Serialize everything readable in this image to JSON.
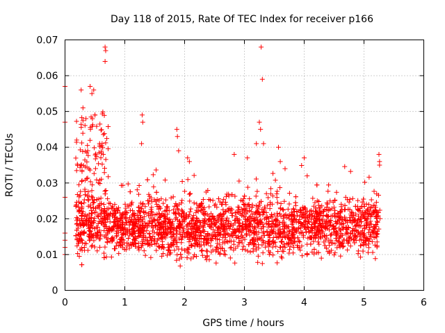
{
  "chart_data": {
    "type": "scatter",
    "title": "Day 118 of 2015, Rate Of TEC Index for receiver p166",
    "xlabel": "GPS time / hours",
    "ylabel": "ROTI / TECUs",
    "xlim": [
      0,
      6
    ],
    "ylim": [
      0,
      0.07
    ],
    "grid": true,
    "marker": "+",
    "color": "#ff0000",
    "x_ticks": [
      "0",
      "1",
      "2",
      "3",
      "4",
      "5",
      "6"
    ],
    "y_ticks": [
      "0",
      "0.01",
      "0.02",
      "0.03",
      "0.04",
      "0.05",
      "0.06",
      "0.07"
    ],
    "series": [
      {
        "name": "ROTI",
        "x_range": [
          0.0,
          5.27
        ],
        "typical_range": [
          0.006,
          0.025
        ],
        "sample_count": 2600,
        "notable_points": [
          {
            "x": 0.0,
            "y": 0.057
          },
          {
            "x": 0.0,
            "y": 0.047
          },
          {
            "x": 0.0,
            "y": 0.026
          },
          {
            "x": 0.0,
            "y": 0.016
          },
          {
            "x": 0.0,
            "y": 0.014
          },
          {
            "x": 0.0,
            "y": 0.012
          },
          {
            "x": 0.0,
            "y": 0.01
          },
          {
            "x": 0.27,
            "y": 0.056
          },
          {
            "x": 0.3,
            "y": 0.051
          },
          {
            "x": 0.35,
            "y": 0.048
          },
          {
            "x": 0.42,
            "y": 0.057
          },
          {
            "x": 0.45,
            "y": 0.055
          },
          {
            "x": 0.48,
            "y": 0.056
          },
          {
            "x": 0.5,
            "y": 0.049
          },
          {
            "x": 0.38,
            "y": 0.039
          },
          {
            "x": 0.4,
            "y": 0.034
          },
          {
            "x": 0.62,
            "y": 0.041
          },
          {
            "x": 0.64,
            "y": 0.038
          },
          {
            "x": 0.67,
            "y": 0.068
          },
          {
            "x": 0.68,
            "y": 0.067
          },
          {
            "x": 0.67,
            "y": 0.064
          },
          {
            "x": 1.29,
            "y": 0.049
          },
          {
            "x": 1.3,
            "y": 0.047
          },
          {
            "x": 1.28,
            "y": 0.041
          },
          {
            "x": 1.87,
            "y": 0.045
          },
          {
            "x": 1.88,
            "y": 0.043
          },
          {
            "x": 1.9,
            "y": 0.039
          },
          {
            "x": 2.05,
            "y": 0.037
          },
          {
            "x": 2.08,
            "y": 0.036
          },
          {
            "x": 2.83,
            "y": 0.038
          },
          {
            "x": 3.05,
            "y": 0.037
          },
          {
            "x": 3.2,
            "y": 0.041
          },
          {
            "x": 3.25,
            "y": 0.047
          },
          {
            "x": 3.27,
            "y": 0.045
          },
          {
            "x": 3.28,
            "y": 0.068
          },
          {
            "x": 3.3,
            "y": 0.059
          },
          {
            "x": 3.32,
            "y": 0.041
          },
          {
            "x": 3.57,
            "y": 0.04
          },
          {
            "x": 3.6,
            "y": 0.036
          },
          {
            "x": 3.68,
            "y": 0.034
          },
          {
            "x": 4.0,
            "y": 0.037
          },
          {
            "x": 4.05,
            "y": 0.032
          },
          {
            "x": 5.25,
            "y": 0.038
          },
          {
            "x": 5.26,
            "y": 0.036
          },
          {
            "x": 5.26,
            "y": 0.035
          }
        ]
      }
    ]
  }
}
